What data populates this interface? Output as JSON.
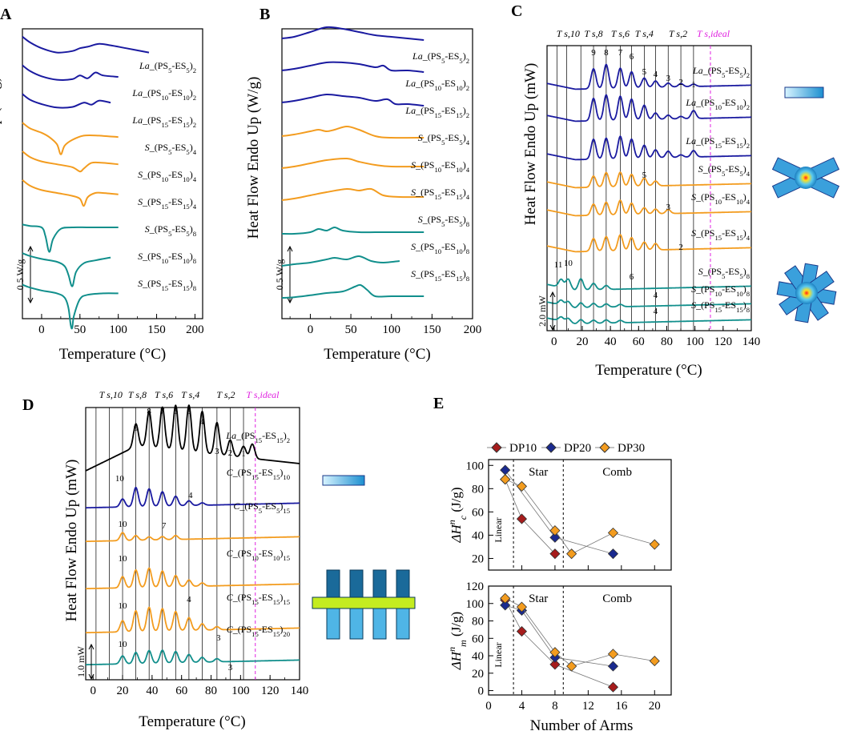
{
  "chart_data": [
    {
      "panel": "A",
      "type": "line",
      "ylabel": "Heat Flow Endo Up (W/g)",
      "xlabel": "Temperature (°C)",
      "xticks": [
        "0",
        "50",
        "100",
        "150",
        "200"
      ],
      "xlim": [
        -25,
        210
      ],
      "scale_bar": "0.5 W/g",
      "series": [
        {
          "name": "La_(PS5-ES5)2",
          "color": "#1a1aa0",
          "x": [
            -25,
            -15,
            0,
            20,
            40,
            50,
            60,
            75,
            90,
            110,
            140
          ],
          "y": [
            0.95,
            0.75,
            0.55,
            0.4,
            0.45,
            0.55,
            0.6,
            0.7,
            0.65,
            0.55,
            0.4
          ]
        },
        {
          "name": "La_(PS10-ES10)2",
          "color": "#1a1aa0",
          "x": [
            -25,
            -15,
            0,
            20,
            40,
            50,
            60,
            70,
            80,
            100
          ],
          "y": [
            0.9,
            0.7,
            0.52,
            0.4,
            0.42,
            0.55,
            0.45,
            0.65,
            0.55,
            0.5
          ]
        },
        {
          "name": "La_(PS15-ES15)2",
          "color": "#1a1aa0",
          "x": [
            -25,
            -15,
            0,
            20,
            40,
            55,
            65,
            75,
            90
          ],
          "y": [
            0.85,
            0.65,
            0.5,
            0.38,
            0.4,
            0.55,
            0.48,
            0.62,
            0.55
          ]
        },
        {
          "name": "S_(PS5-ES5)4",
          "color": "#f39c1f",
          "x": [
            -25,
            -15,
            0,
            10,
            20,
            25,
            30,
            40,
            55,
            75,
            100
          ],
          "y": [
            0.8,
            0.6,
            0.45,
            0.3,
            0.05,
            -0.3,
            0.0,
            0.2,
            0.35,
            0.35,
            0.3
          ]
        },
        {
          "name": "S_(PS10-ES10)4",
          "color": "#f39c1f",
          "x": [
            -25,
            -15,
            0,
            20,
            40,
            50,
            55,
            65,
            80,
            100
          ],
          "y": [
            0.75,
            0.55,
            0.4,
            0.3,
            0.2,
            0.05,
            0.15,
            0.35,
            0.35,
            0.3
          ]
        },
        {
          "name": "S_(PS15-ES15)4",
          "color": "#f39c1f",
          "x": [
            -25,
            -15,
            0,
            20,
            40,
            50,
            55,
            60,
            70,
            80,
            100
          ],
          "y": [
            0.7,
            0.5,
            0.35,
            0.25,
            0.15,
            0.05,
            -0.2,
            0.1,
            0.25,
            0.25,
            0.2
          ]
        },
        {
          "name": "S_(PS5-ES5)8",
          "color": "#118f8c",
          "x": [
            -25,
            -15,
            0,
            5,
            10,
            15,
            25,
            40,
            60,
            80,
            100
          ],
          "y": [
            0.1,
            0.05,
            0.0,
            -0.3,
            -0.85,
            -0.4,
            -0.05,
            0.0,
            0.0,
            0.0,
            0.0
          ]
        },
        {
          "name": "S_(PS10-ES10)8",
          "color": "#118f8c",
          "x": [
            -25,
            -15,
            0,
            20,
            30,
            35,
            40,
            45,
            55,
            70,
            90
          ],
          "y": [
            0.05,
            -0.05,
            -0.15,
            -0.25,
            -0.4,
            -0.7,
            -1.1,
            -0.6,
            -0.3,
            -0.2,
            -0.1
          ]
        },
        {
          "name": "S_(PS15-ES15)8",
          "color": "#118f8c",
          "x": [
            -25,
            -15,
            0,
            20,
            30,
            35,
            38,
            40,
            42,
            50,
            60,
            80,
            100
          ],
          "y": [
            -0.1,
            -0.2,
            -0.3,
            -0.4,
            -0.55,
            -0.9,
            -1.5,
            -1.6,
            -1.2,
            -0.6,
            -0.45,
            -0.4,
            -0.4
          ]
        }
      ]
    },
    {
      "panel": "B",
      "type": "line",
      "ylabel": "Heat Flow Endo Up (W/g)",
      "xlabel": "Temperature (°C)",
      "xticks": [
        "0",
        "50",
        "100",
        "150",
        "200"
      ],
      "xlim": [
        -35,
        200
      ],
      "scale_bar": "0.5 W/g",
      "series": [
        {
          "name": "La_(PS5-ES5)2",
          "color": "#1a1aa0",
          "x": [
            -35,
            -20,
            0,
            20,
            40,
            60,
            80,
            100,
            120,
            140
          ],
          "y": [
            0.5,
            0.55,
            0.7,
            0.85,
            0.8,
            0.7,
            0.6,
            0.55,
            0.5,
            0.45
          ]
        },
        {
          "name": "La_(PS10-ES10)2",
          "color": "#1a1aa0",
          "x": [
            -35,
            -20,
            0,
            20,
            40,
            60,
            80,
            90,
            100,
            120,
            140
          ],
          "y": [
            0.35,
            0.4,
            0.5,
            0.6,
            0.6,
            0.55,
            0.45,
            0.5,
            0.35,
            0.35,
            0.3
          ]
        },
        {
          "name": "La_(PS15-ES15)2",
          "color": "#1a1aa0",
          "x": [
            -35,
            -20,
            0,
            20,
            40,
            60,
            80,
            95,
            105,
            120,
            140
          ],
          "y": [
            0.2,
            0.25,
            0.35,
            0.45,
            0.4,
            0.35,
            0.25,
            0.3,
            0.15,
            0.15,
            0.1
          ]
        },
        {
          "name": "S_(PS5-ES5)4",
          "color": "#f39c1f",
          "x": [
            -35,
            -20,
            0,
            10,
            20,
            30,
            45,
            60,
            80,
            100,
            140
          ],
          "y": [
            0.0,
            0.05,
            0.15,
            0.2,
            0.15,
            0.2,
            0.3,
            0.2,
            0.0,
            -0.05,
            -0.05
          ]
        },
        {
          "name": "S_(PS10-ES10)4",
          "color": "#f39c1f",
          "x": [
            -35,
            -20,
            0,
            20,
            45,
            60,
            80,
            100,
            140
          ],
          "y": [
            -0.15,
            -0.1,
            0.0,
            0.1,
            0.15,
            0.05,
            -0.05,
            -0.1,
            -0.1
          ]
        },
        {
          "name": "S_(PS15-ES15)4",
          "color": "#f39c1f",
          "x": [
            -35,
            -20,
            0,
            20,
            45,
            60,
            75,
            90,
            110,
            140
          ],
          "y": [
            -0.3,
            -0.25,
            -0.15,
            -0.05,
            0.05,
            0.0,
            0.05,
            -0.15,
            -0.2,
            -0.2
          ]
        },
        {
          "name": "S_(PS5-ES5)8",
          "color": "#118f8c",
          "x": [
            -35,
            -20,
            0,
            10,
            20,
            30,
            40,
            60,
            80,
            100,
            140
          ],
          "y": [
            -0.5,
            -0.5,
            -0.45,
            -0.35,
            -0.4,
            -0.3,
            -0.4,
            -0.45,
            -0.45,
            -0.45,
            -0.45
          ]
        },
        {
          "name": "S_(PS10-ES10)8",
          "color": "#118f8c",
          "x": [
            -35,
            -20,
            0,
            20,
            30,
            45,
            60,
            75,
            90,
            110
          ],
          "y": [
            -0.65,
            -0.6,
            -0.55,
            -0.45,
            -0.4,
            -0.45,
            -0.35,
            -0.5,
            -0.55,
            -0.5
          ]
        },
        {
          "name": "S_(PS15-ES15)8",
          "color": "#118f8c",
          "x": [
            -35,
            -20,
            0,
            20,
            40,
            55,
            62,
            70,
            80,
            100,
            140
          ],
          "y": [
            -0.8,
            -0.78,
            -0.72,
            -0.65,
            -0.6,
            -0.45,
            -0.4,
            -0.55,
            -0.75,
            -0.75,
            -0.75
          ]
        }
      ]
    },
    {
      "panel": "C",
      "type": "line",
      "ylabel": "Heat Flow Endo Up (mW)",
      "xlabel": "Temperature (°C)",
      "xticks": [
        "0",
        "20",
        "40",
        "60",
        "80",
        "100",
        "120",
        "140"
      ],
      "xlim": [
        -5,
        140
      ],
      "scale_bar": "2.0 mW",
      "ts_labels": [
        "T s,10",
        "T s,8",
        "T s,6",
        "T s,4",
        "T s,2"
      ],
      "ts_ideal": "T s,ideal",
      "peak_numbers": [
        "9",
        "8",
        "7",
        "6",
        "5",
        "4",
        "3",
        "2",
        "1",
        "5",
        "3",
        "2",
        "11",
        "10",
        "6",
        "4",
        "4"
      ],
      "series_labels": [
        "La_(PS5-ES5)2",
        "La_(PS10-ES10)2",
        "La_(PS15-ES15)2",
        "S_(PS5-ES5)4",
        "S_(PS10-ES10)4",
        "S_(PS15-ES15)4",
        "S_(PS5-ES5)8",
        "S_(PS10-ES10)8",
        "S_(PS15-ES15)8"
      ]
    },
    {
      "panel": "D",
      "type": "line",
      "ylabel": "Heat Flow Endo Up (mW)",
      "xlabel": "Temperature (°C)",
      "xticks": [
        "0",
        "20",
        "40",
        "60",
        "80",
        "100",
        "120",
        "140"
      ],
      "xlim": [
        -5,
        140
      ],
      "scale_bar": "1.0 mW",
      "ts_labels": [
        "T s,10",
        "T s,8",
        "T s,6",
        "T s,4",
        "T s,2"
      ],
      "ts_ideal": "T s,ideal",
      "peak_numbers": [
        "9",
        "8",
        "7",
        "6",
        "5",
        "4",
        "3",
        "2",
        "1",
        "10",
        "4",
        "10",
        "7",
        "10",
        "4",
        "10",
        "3",
        "10",
        "3"
      ],
      "series_labels": [
        "La_(PS15-ES15)2",
        "C_(PS15-ES15)10",
        "C_(PS5-ES5)15",
        "C_(PS10-ES10)15",
        "C_(PS15-ES15)15",
        "C_(PS15-ES15)20"
      ]
    },
    {
      "panel": "E",
      "type": "scatter",
      "xlabel": "Number of Arms",
      "xticks": [
        "0",
        "4",
        "8",
        "12",
        "16",
        "20"
      ],
      "legend": [
        "DP10",
        "DP20",
        "DP30"
      ],
      "region_labels": [
        "Star",
        "Comb",
        "Linear"
      ],
      "top": {
        "ylabel": "ΔHnc (J/g)",
        "ylim": [
          10,
          105
        ],
        "yticks": [
          "20",
          "40",
          "60",
          "80",
          "100"
        ],
        "series": [
          {
            "name": "DP10",
            "color": "#a61c1c",
            "x": [
              2,
              4,
              8
            ],
            "y": [
              88,
              54,
              24
            ]
          },
          {
            "name": "DP20",
            "color": "#1a2a8f",
            "x": [
              2,
              8,
              15
            ],
            "y": [
              96,
              38,
              24
            ]
          },
          {
            "name": "DP30",
            "color": "#f39c1f",
            "x": [
              2,
              4,
              8,
              10,
              15,
              20
            ],
            "y": [
              88,
              82,
              44,
              24,
              42,
              32
            ]
          }
        ]
      },
      "bottom": {
        "ylabel": "ΔHnm (J/g)",
        "ylim": [
          -5,
          120
        ],
        "yticks": [
          "0",
          "20",
          "40",
          "60",
          "80",
          "100",
          "120"
        ],
        "series": [
          {
            "name": "DP10",
            "color": "#a61c1c",
            "x": [
              2,
              4,
              8,
              15
            ],
            "y": [
              104,
              68,
              30,
              4
            ]
          },
          {
            "name": "DP20",
            "color": "#1a2a8f",
            "x": [
              2,
              4,
              8,
              15
            ],
            "y": [
              98,
              92,
              38,
              28
            ]
          },
          {
            "name": "DP30",
            "color": "#f39c1f",
            "x": [
              2,
              4,
              8,
              10,
              15,
              20
            ],
            "y": [
              106,
              96,
              44,
              28,
              42,
              34
            ]
          }
        ]
      }
    }
  ]
}
